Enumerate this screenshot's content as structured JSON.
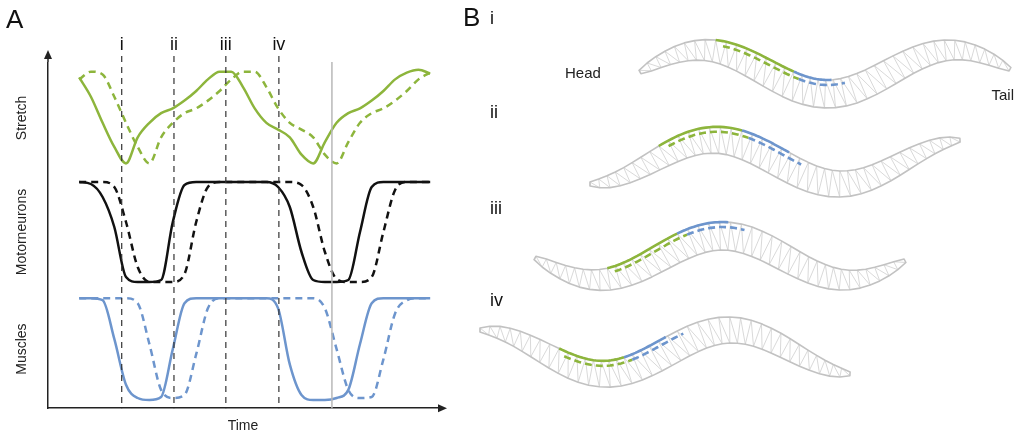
{
  "chart_data": {
    "type": "line",
    "panel_label": "A",
    "x_label": "Time",
    "xlim": [
      0,
      100
    ],
    "tick_labels": false,
    "grid": false,
    "x": [
      8,
      11,
      14,
      17,
      20,
      23,
      26,
      29,
      32,
      35,
      38,
      41,
      44,
      47,
      50,
      53,
      56,
      59,
      62,
      65,
      68,
      71,
      74,
      77,
      80,
      83,
      86,
      89,
      92,
      95,
      98
    ],
    "vertical_lines": [
      {
        "value": 18.9,
        "label": "i"
      },
      {
        "value": 32.3,
        "label": "ii"
      },
      {
        "value": 45.6,
        "label": "iii"
      },
      {
        "value": 59.2,
        "label": "iv"
      }
    ],
    "reference_lines": [
      72.8
    ],
    "panels": [
      {
        "y_label": "Stretch",
        "ylim": [
          -0.08,
          1.08
        ],
        "series": [
          {
            "color": "#8db53c",
            "line_style": "solid",
            "values": [
              0.92,
              0.72,
              0.45,
              0.2,
              0.03,
              0.3,
              0.45,
              0.55,
              0.6,
              0.68,
              0.78,
              0.9,
              0.98,
              0.98,
              0.82,
              0.6,
              0.45,
              0.38,
              0.3,
              0.12,
              0.03,
              0.25,
              0.45,
              0.55,
              0.6,
              0.68,
              0.78,
              0.9,
              0.97,
              1.0,
              0.96
            ]
          },
          {
            "color": "#8db53c",
            "line_style": "dashed",
            "values": [
              0.9,
              0.98,
              0.95,
              0.72,
              0.45,
              0.2,
              0.03,
              0.3,
              0.45,
              0.55,
              0.6,
              0.68,
              0.78,
              0.9,
              0.98,
              0.98,
              0.82,
              0.6,
              0.45,
              0.38,
              0.3,
              0.12,
              0.03,
              0.25,
              0.45,
              0.55,
              0.6,
              0.68,
              0.78,
              0.9,
              0.97
            ]
          }
        ]
      },
      {
        "y_label": "Motorneurons",
        "ylim": [
          -0.08,
          1.08
        ],
        "series": [
          {
            "color": "#111111",
            "line_style": "solid",
            "values": [
              1,
              0.98,
              0.85,
              0.55,
              0.05,
              0,
              0,
              0.02,
              0.6,
              0.97,
              1,
              1,
              1,
              1,
              1,
              1,
              1,
              0.95,
              0.75,
              0.3,
              0.02,
              0,
              0,
              0.02,
              0.5,
              0.95,
              1,
              1,
              1,
              1,
              1
            ]
          },
          {
            "color": "#111111",
            "line_style": "dashed",
            "values": [
              1,
              1,
              1,
              0.95,
              0.6,
              0.15,
              0,
              0,
              0,
              0.08,
              0.6,
              0.95,
              1,
              1,
              1,
              1,
              1,
              1,
              1,
              0.97,
              0.75,
              0.3,
              0.03,
              0,
              0,
              0.05,
              0.5,
              0.92,
              1,
              1,
              1
            ]
          }
        ]
      },
      {
        "y_label": "Muscles",
        "ylim": [
          -0.08,
          1.08
        ],
        "series": [
          {
            "color": "#6d95cd",
            "line_style": "solid",
            "values": [
              1,
              1,
              0.98,
              0.6,
              0.15,
              0.02,
              0,
              0.03,
              0.5,
              0.95,
              1,
              1,
              1,
              1,
              1,
              1,
              1,
              0.9,
              0.35,
              0.05,
              0,
              0,
              0.02,
              0.1,
              0.55,
              0.95,
              1,
              1,
              1,
              1,
              1
            ]
          },
          {
            "color": "#6d95cd",
            "line_style": "dashed",
            "values": [
              1,
              1,
              1,
              1,
              1,
              0.95,
              0.55,
              0.1,
              0.02,
              0.05,
              0.45,
              0.9,
              1,
              1,
              1,
              1,
              1,
              1,
              1,
              1,
              1,
              0.9,
              0.5,
              0.1,
              0.02,
              0.03,
              0.4,
              0.85,
              0.98,
              1,
              1
            ]
          }
        ]
      }
    ]
  },
  "diagram": {
    "panel_label": "B",
    "frames": [
      "i",
      "ii",
      "iii",
      "iv"
    ],
    "head_label": "Head",
    "tail_label": "Tail"
  }
}
